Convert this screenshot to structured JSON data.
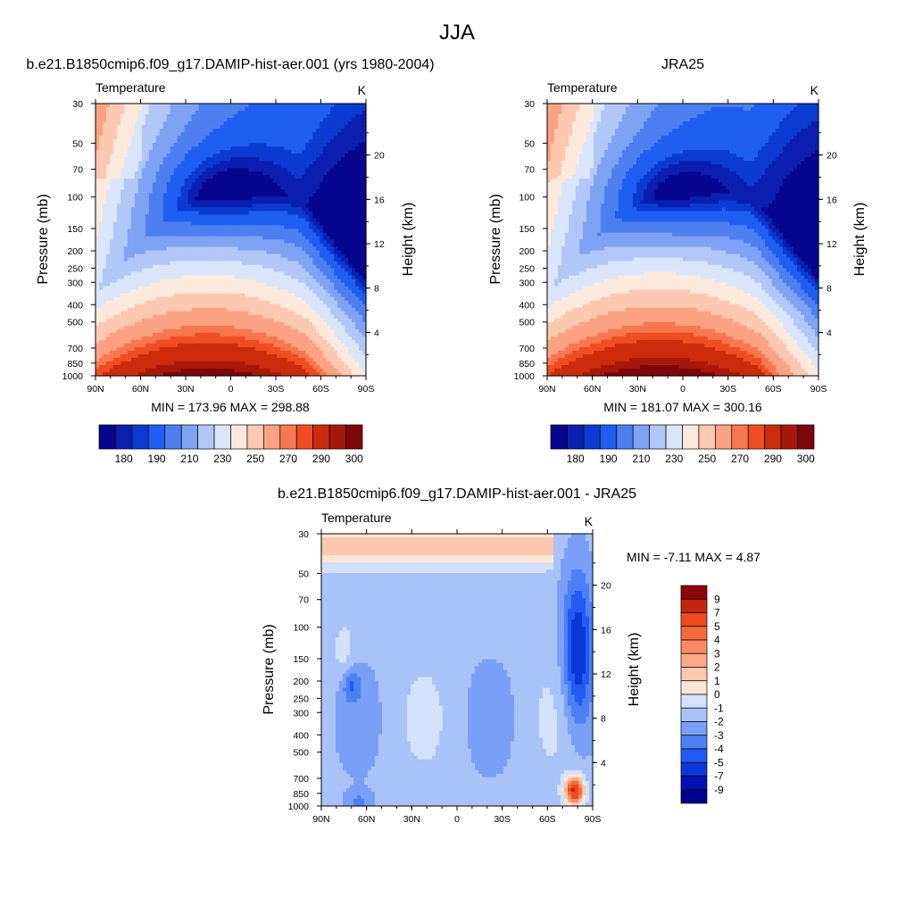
{
  "figure": {
    "main_title": "JJA"
  },
  "chart_data": [
    {
      "type": "heatmap",
      "panel": "model",
      "title": "b.e21.B1850cmip6.f09_g17.DAMIP-hist-aer.001 (yrs 1980-2004)",
      "left_label": "Temperature",
      "units": "K",
      "ylabel": "Pressure (mb)",
      "ylabel_right": "Height (km)",
      "x_ticks": [
        "90N",
        "60N",
        "30N",
        "0",
        "30S",
        "60S",
        "90S"
      ],
      "y_ticks": [
        "30",
        "50",
        "70",
        "100",
        "150",
        "200",
        "250",
        "300",
        "400",
        "500",
        "700",
        "850",
        "1000"
      ],
      "y_ticks_right": [
        "20",
        "16",
        "12",
        "8",
        "4"
      ],
      "stats_text": "MIN = 173.96  MAX = 298.88",
      "min": 173.96,
      "max": 298.88,
      "colorbar_orientation": "horizontal",
      "colorbar_labels": [
        "180",
        "190",
        "210",
        "230",
        "250",
        "270",
        "290",
        "300"
      ]
    },
    {
      "type": "heatmap",
      "panel": "reference",
      "title": "JRA25",
      "left_label": "Temperature",
      "units": "K",
      "ylabel": "Pressure (mb)",
      "ylabel_right": "Height (km)",
      "x_ticks": [
        "90N",
        "60N",
        "30N",
        "0",
        "30S",
        "60S",
        "90S"
      ],
      "y_ticks": [
        "30",
        "50",
        "70",
        "100",
        "150",
        "200",
        "250",
        "300",
        "400",
        "500",
        "700",
        "850",
        "1000"
      ],
      "y_ticks_right": [
        "20",
        "16",
        "12",
        "8",
        "4"
      ],
      "stats_text": "MIN = 181.07  MAX = 300.16",
      "min": 181.07,
      "max": 300.16,
      "colorbar_orientation": "horizontal",
      "colorbar_labels": [
        "180",
        "190",
        "210",
        "230",
        "250",
        "270",
        "290",
        "300"
      ]
    },
    {
      "type": "heatmap",
      "panel": "difference",
      "title": "b.e21.B1850cmip6.f09_g17.DAMIP-hist-aer.001 - JRA25",
      "left_label": "Temperature",
      "units": "K",
      "ylabel": "Pressure (mb)",
      "ylabel_right": "Height (km)",
      "x_ticks": [
        "90N",
        "60N",
        "30N",
        "0",
        "30S",
        "60S",
        "90S"
      ],
      "y_ticks": [
        "30",
        "50",
        "70",
        "100",
        "150",
        "200",
        "250",
        "300",
        "400",
        "500",
        "700",
        "850",
        "1000"
      ],
      "y_ticks_right": [
        "20",
        "16",
        "12",
        "8",
        "4"
      ],
      "stats_text": "MIN =  -7.11  MAX =   4.87",
      "min": -7.11,
      "max": 4.87,
      "colorbar_orientation": "vertical",
      "colorbar_labels": [
        "9",
        "7",
        "5",
        "4",
        "3",
        "2",
        "1",
        "0",
        "-1",
        "-2",
        "-3",
        "-4",
        "-5",
        "-7",
        "-9"
      ]
    }
  ],
  "colors": {
    "abs_palette": [
      "#07068f",
      "#0a1fb0",
      "#0b3bd1",
      "#1f5ef0",
      "#4d7ff0",
      "#7ea3f5",
      "#b1c7f7",
      "#d9e6fb",
      "#fde9dc",
      "#fcc8b0",
      "#fba283",
      "#f7784f",
      "#f04d22",
      "#cc2c0b",
      "#a8180a",
      "#7e0606"
    ],
    "diff_palette": [
      "#00008e",
      "#0011b5",
      "#0a38d6",
      "#235af5",
      "#4d7ff5",
      "#79a0f6",
      "#a9c3f8",
      "#d3e2fb",
      "#fde6d6",
      "#fcc8b0",
      "#fca98a",
      "#f98a63",
      "#f56a3d",
      "#ec4b1c",
      "#c2260b",
      "#8e0505"
    ]
  }
}
